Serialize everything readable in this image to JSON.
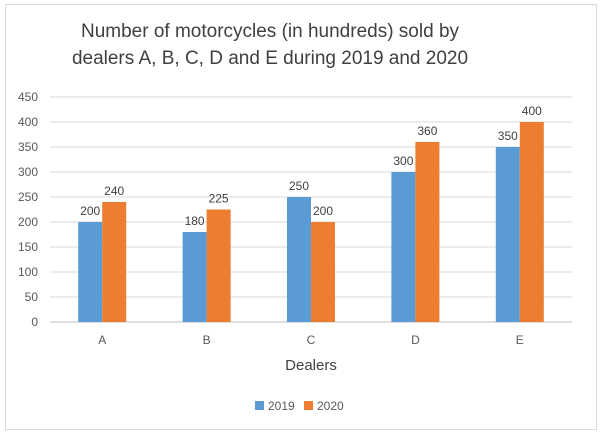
{
  "chart_data": {
    "type": "bar",
    "title_line1": "Number of motorcycles (in hundreds) sold by",
    "title_line2": "dealers A, B, C, D and E during 2019 and 2020",
    "xlabel": "Dealers",
    "ylabel": "",
    "categories": [
      "A",
      "B",
      "C",
      "D",
      "E"
    ],
    "series": [
      {
        "name": "2019",
        "values": [
          200,
          180,
          250,
          300,
          350
        ],
        "color": "#5b9bd5"
      },
      {
        "name": "2020",
        "values": [
          240,
          225,
          200,
          360,
          400
        ],
        "color": "#ed7d31"
      }
    ],
    "ylim": [
      0,
      450
    ],
    "yticks": [
      0,
      50,
      100,
      150,
      200,
      250,
      300,
      350,
      400,
      450
    ],
    "grid": true,
    "legend_position": "bottom"
  }
}
